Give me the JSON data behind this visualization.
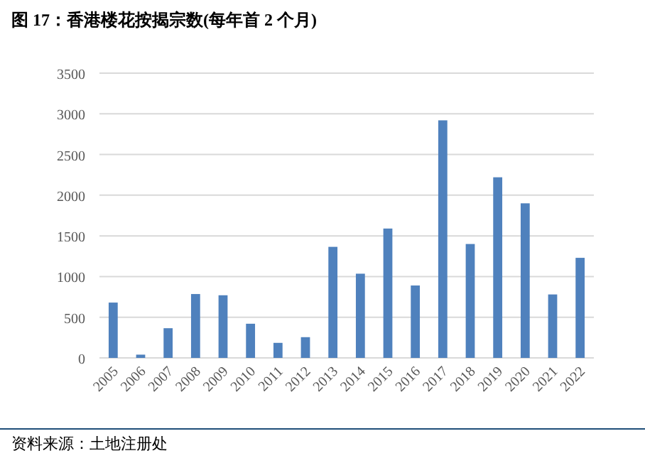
{
  "chart_data": {
    "type": "bar",
    "title": "图 17：香港楼花按揭宗数(每年首 2 个月)",
    "categories": [
      "2005",
      "2006",
      "2007",
      "2008",
      "2009",
      "2010",
      "2011",
      "2012",
      "2013",
      "2014",
      "2015",
      "2016",
      "2017",
      "2018",
      "2019",
      "2020",
      "2021",
      "2022"
    ],
    "values": [
      680,
      40,
      365,
      785,
      770,
      420,
      185,
      255,
      1365,
      1035,
      1590,
      890,
      2920,
      1400,
      2220,
      1900,
      780,
      1230
    ],
    "color": "#4f81bd",
    "ylim": [
      0,
      3500
    ],
    "yticks": [
      0,
      500,
      1000,
      1500,
      2000,
      2500,
      3000,
      3500
    ],
    "grid": "y",
    "annotations": [
      "资料来源：土地注册处"
    ]
  }
}
